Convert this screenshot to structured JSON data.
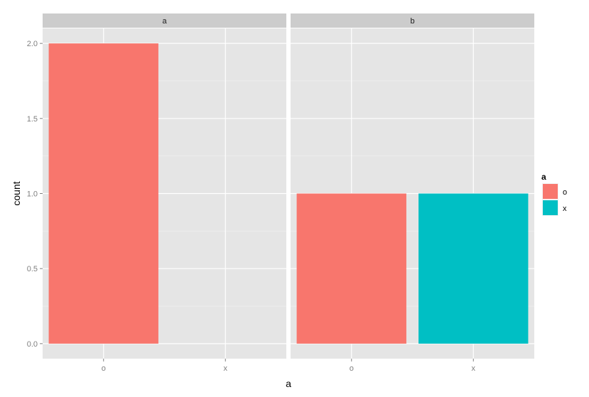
{
  "chart_data": {
    "type": "bar",
    "facet_variable": "a",
    "facets": [
      {
        "label": "a",
        "bars": [
          {
            "x": "o",
            "count": 2.0,
            "fill": "o"
          }
        ]
      },
      {
        "label": "b",
        "bars": [
          {
            "x": "o",
            "count": 1.0,
            "fill": "o"
          },
          {
            "x": "x",
            "count": 1.0,
            "fill": "x"
          }
        ]
      }
    ],
    "categories": [
      "o",
      "x"
    ],
    "xlabel": "a",
    "ylabel": "count",
    "ylim": [
      -0.1,
      2.1
    ],
    "yticks": [
      0.0,
      0.5,
      1.0,
      1.5,
      2.0
    ],
    "ytick_labels": [
      "0.0",
      "0.5",
      "1.0",
      "1.5",
      "2.0"
    ],
    "grid": true,
    "legend": {
      "title": "a",
      "position": "right",
      "entries": [
        {
          "label": "o",
          "color": "#F8766D"
        },
        {
          "label": "x",
          "color": "#00BFC4"
        }
      ]
    },
    "colors": {
      "panel_bg": "#E5E5E5",
      "strip_bg": "#CCCCCC",
      "grid_major": "#FFFFFF",
      "grid_minor": "#F2F2F2",
      "axis_text": "#7F7F7F",
      "title_text": "#000000"
    }
  }
}
